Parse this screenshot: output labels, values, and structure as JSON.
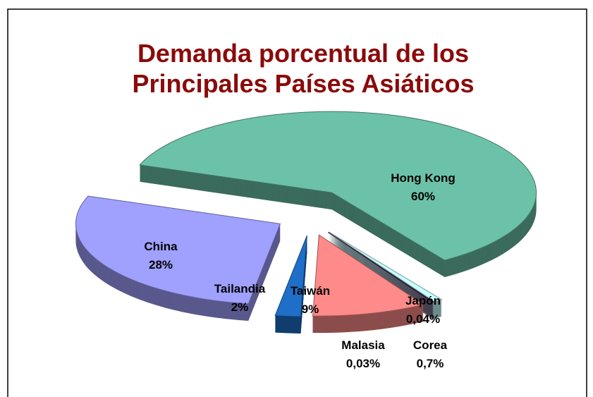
{
  "chart_data": {
    "type": "pie",
    "title": [
      "Demanda porcentual de los",
      "Principales Países Asiáticos"
    ],
    "categories": [
      "Hong Kong",
      "Corea",
      "Japón",
      "Malasia",
      "Taiwán",
      "Tailandia",
      "China"
    ],
    "values": [
      60,
      0.7,
      0.04,
      0.03,
      9,
      2,
      28
    ],
    "value_labels": [
      "60%",
      "0,7%",
      "0,04%",
      "0,03%",
      "9%",
      "2%",
      "28%"
    ],
    "colors": [
      "#6cc2a8",
      "#c8ffff",
      "#8a9a9a",
      "#4a0a48",
      "#ff8a8a",
      "#1f6fc8",
      "#a0a0ff"
    ]
  }
}
